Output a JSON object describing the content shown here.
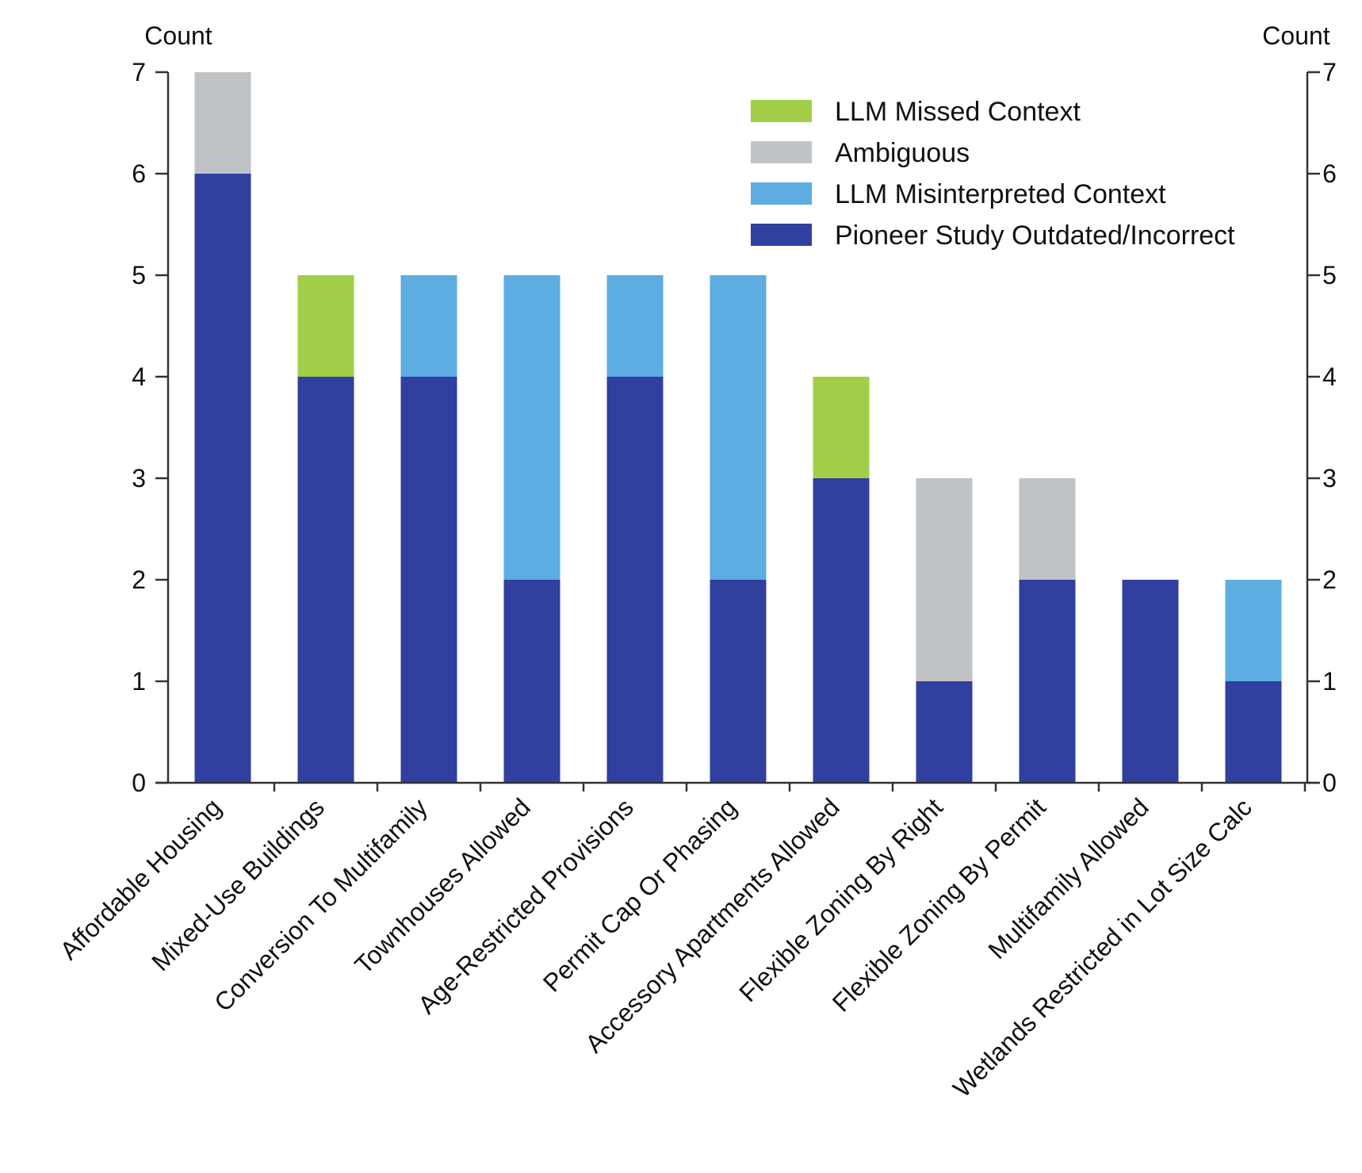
{
  "chart_data": {
    "type": "bar",
    "stacked": true,
    "categories": [
      "Affordable Housing",
      "Mixed-Use Buildings",
      "Conversion To Multifamily",
      "Townhouses Allowed",
      "Age-Restricted Provisions",
      "Permit Cap Or Phasing",
      "Accessory Apartments Allowed",
      "Flexible Zoning By Right",
      "Flexible Zoning By Permit",
      "Multifamily Allowed",
      "Wetlands Restricted in Lot Size Calc"
    ],
    "series": [
      {
        "name": "Pioneer Study Outdated/Incorrect",
        "color": "#313F9E",
        "values": [
          6,
          4,
          4,
          2,
          4,
          2,
          3,
          1,
          2,
          2,
          1
        ]
      },
      {
        "name": "LLM Misinterpreted Context",
        "color": "#5DACE2",
        "values": [
          0,
          0,
          1,
          3,
          1,
          3,
          0,
          0,
          0,
          0,
          1
        ]
      },
      {
        "name": "Ambiguous",
        "color": "#BFC3C6",
        "values": [
          1,
          0,
          0,
          0,
          0,
          0,
          0,
          2,
          1,
          0,
          0
        ]
      },
      {
        "name": "LLM Missed Context",
        "color": "#A2CD48",
        "values": [
          0,
          1,
          0,
          0,
          0,
          0,
          1,
          0,
          0,
          0,
          0
        ]
      }
    ],
    "legend_order": [
      "LLM Missed Context",
      "Ambiguous",
      "LLM Misinterpreted Context",
      "Pioneer Study Outdated/Incorrect"
    ],
    "legend_position": "top-right",
    "title": "",
    "xlabel": "",
    "ylabel_left": "Count",
    "ylabel_right": "Count",
    "ylim": [
      0,
      7
    ],
    "yticks": [
      "0",
      "1",
      "2",
      "3",
      "4",
      "5",
      "6",
      "7"
    ],
    "grid": false
  }
}
